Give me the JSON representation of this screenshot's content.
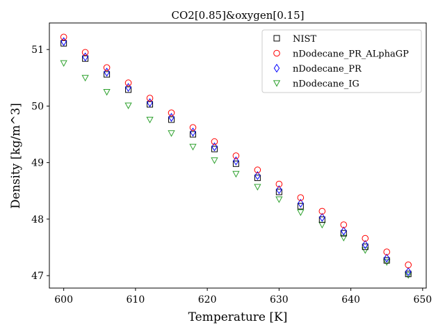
{
  "chart_data": {
    "type": "scatter",
    "title": "CO2[0.85]&oxygen[0.15]",
    "xlabel": "Temperature [K]",
    "ylabel": "Density [kg/m^3]",
    "xlim": [
      598,
      650.5
    ],
    "ylim": [
      46.78,
      51.47
    ],
    "xticks": [
      600,
      610,
      620,
      630,
      640,
      650
    ],
    "yticks": [
      47,
      48,
      49,
      50,
      51
    ],
    "grid": false,
    "legend": "top-right",
    "x": [
      600,
      603,
      606,
      609,
      612,
      615,
      618,
      621,
      624,
      627,
      630,
      633,
      636,
      639,
      642,
      645,
      648
    ],
    "series": [
      {
        "name": "NIST",
        "marker": "square",
        "color": "#000000",
        "values": [
          51.11,
          50.84,
          50.56,
          50.29,
          50.03,
          49.76,
          49.5,
          49.24,
          48.98,
          48.73,
          48.48,
          48.23,
          47.99,
          47.75,
          47.51,
          47.27,
          47.03
        ]
      },
      {
        "name": "nDodecane_PR_ALphaGP",
        "marker": "circle",
        "color": "#ff0000",
        "values": [
          51.22,
          50.95,
          50.68,
          50.41,
          50.14,
          49.88,
          49.62,
          49.37,
          49.12,
          48.87,
          48.62,
          48.38,
          48.14,
          47.9,
          47.66,
          47.42,
          47.19
        ]
      },
      {
        "name": "nDodecane_PR",
        "marker": "diamond",
        "color": "#0000ff",
        "values": [
          51.14,
          50.87,
          50.6,
          50.33,
          50.06,
          49.8,
          49.54,
          49.28,
          49.03,
          48.77,
          48.52,
          48.28,
          48.03,
          47.79,
          47.55,
          47.31,
          47.07
        ]
      },
      {
        "name": "nDodecane_IG",
        "marker": "triangle-down",
        "color": "#2ca02c",
        "values": [
          50.76,
          50.5,
          50.25,
          50.01,
          49.76,
          49.52,
          49.28,
          49.04,
          48.8,
          48.57,
          48.35,
          48.12,
          47.9,
          47.67,
          47.45,
          47.24,
          47.01
        ]
      }
    ]
  }
}
